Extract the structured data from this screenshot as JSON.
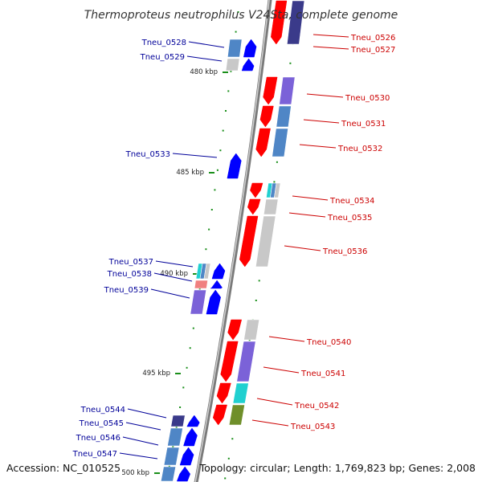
{
  "title": "Thermoproteus neutrophilus V24Sta, complete genome",
  "accession": "Accession: NC_010525",
  "topology": "Topology: circular; Length: 1,769,823 bp; Genes: 2,008",
  "colors": {
    "plus_strand": "#ff0000",
    "minus_strand": "#0000ff",
    "label_plus": "#cc0000",
    "label_minus": "#000099",
    "backbone": "#888888",
    "tick": "#1a8f1a",
    "cog_gray": "#c8c8c8",
    "cog_steel": "#4f86c6",
    "cog_purple": "#7b62d8",
    "cog_cyan": "#20d0d0",
    "cog_olive": "#6f8f2a",
    "cog_pink": "#f08080",
    "cog_navy": "#3a3a8a"
  },
  "kbp_marks": [
    "480 kbp",
    "485 kbp",
    "490 kbp",
    "495 kbp",
    "500 kbp"
  ],
  "genes_plus": [
    {
      "id": "Tneu_0526",
      "cog": [
        "cog_navy"
      ]
    },
    {
      "id": "Tneu_0527",
      "cog": []
    },
    {
      "id": "Tneu_0530",
      "cog": [
        "cog_purple"
      ]
    },
    {
      "id": "Tneu_0531",
      "cog": [
        "cog_steel"
      ]
    },
    {
      "id": "Tneu_0532",
      "cog": [
        "cog_steel"
      ]
    },
    {
      "id": "Tneu_0534",
      "cog": [
        "cog_cyan",
        "cog_steel",
        "cog_gray"
      ]
    },
    {
      "id": "Tneu_0535",
      "cog": [
        "cog_gray"
      ]
    },
    {
      "id": "Tneu_0536",
      "cog": [
        "cog_gray"
      ]
    },
    {
      "id": "Tneu_0540",
      "cog": [
        "cog_gray"
      ]
    },
    {
      "id": "Tneu_0541",
      "cog": [
        "cog_purple"
      ]
    },
    {
      "id": "Tneu_0542",
      "cog": [
        "cog_cyan"
      ]
    },
    {
      "id": "Tneu_0543",
      "cog": [
        "cog_olive"
      ]
    }
  ],
  "genes_minus": [
    {
      "id": "Tneu_0528",
      "cog": [
        "cog_steel"
      ]
    },
    {
      "id": "Tneu_0529",
      "cog": [
        "cog_gray"
      ]
    },
    {
      "id": "Tneu_0533",
      "cog": []
    },
    {
      "id": "Tneu_0537",
      "cog": [
        "cog_cyan",
        "cog_steel",
        "cog_gray"
      ]
    },
    {
      "id": "Tneu_0538",
      "cog": [
        "cog_pink"
      ]
    },
    {
      "id": "Tneu_0539",
      "cog": [
        "cog_purple"
      ]
    },
    {
      "id": "Tneu_0544",
      "cog": [
        "cog_navy"
      ]
    },
    {
      "id": "Tneu_0545",
      "cog": [
        "cog_steel"
      ]
    },
    {
      "id": "Tneu_0546",
      "cog": [
        "cog_steel"
      ]
    },
    {
      "id": "Tneu_0547",
      "cog": [
        "cog_steel"
      ]
    }
  ]
}
